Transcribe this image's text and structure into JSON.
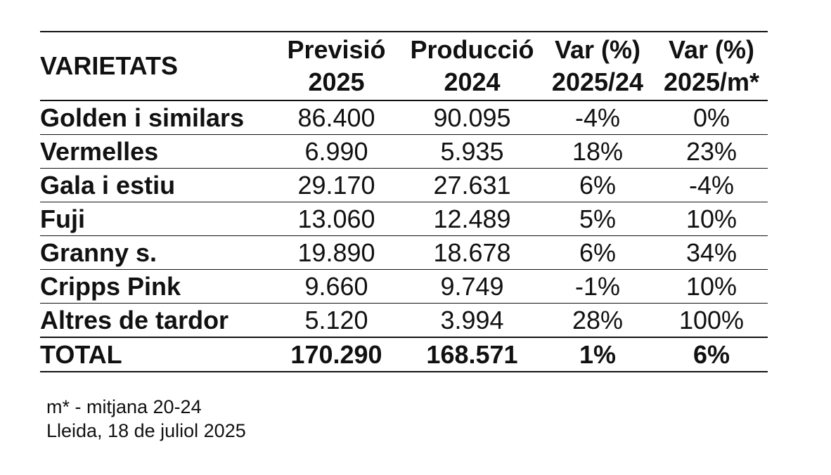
{
  "header": {
    "varietats": "VARIETATS",
    "col1_l1": "Previsió",
    "col1_l2": "2025",
    "col2_l1": "Producció",
    "col2_l2": "2024",
    "col3_l1": "Var (%)",
    "col3_l2": "2025/24",
    "col4_l1": "Var (%)",
    "col4_l2": "2025/m*"
  },
  "rows": [
    {
      "name": "Golden i similars",
      "prev": "86.400",
      "prod": "90.095",
      "var1": "-4%",
      "var2": "0%"
    },
    {
      "name": "Vermelles",
      "prev": "6.990",
      "prod": "5.935",
      "var1": "18%",
      "var2": "23%"
    },
    {
      "name": "Gala i estiu",
      "prev": "29.170",
      "prod": "27.631",
      "var1": "6%",
      "var2": "-4%"
    },
    {
      "name": "Fuji",
      "prev": "13.060",
      "prod": "12.489",
      "var1": "5%",
      "var2": "10%"
    },
    {
      "name": "Granny s.",
      "prev": "19.890",
      "prod": "18.678",
      "var1": "6%",
      "var2": "34%"
    },
    {
      "name": "Cripps Pink",
      "prev": "9.660",
      "prod": "9.749",
      "var1": "-1%",
      "var2": "10%"
    },
    {
      "name": "Altres de tardor",
      "prev": "5.120",
      "prod": "3.994",
      "var1": "28%",
      "var2": "100%"
    }
  ],
  "total": {
    "name": "TOTAL",
    "prev": "170.290",
    "prod": "168.571",
    "var1": "1%",
    "var2": "6%"
  },
  "notes": {
    "footnote": "m* - mitjana 20-24",
    "place_date": "Lleida, 18 de juliol 2025"
  }
}
